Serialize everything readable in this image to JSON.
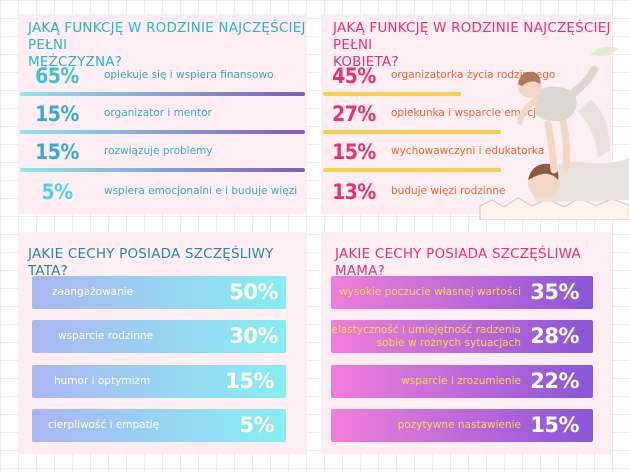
{
  "panel_men": {
    "title_line1": "JAKĄ FUNKCJĘ W RODZINIE NAJCZĘŚCIEJ PEŁNI",
    "title_line2": "MĘŻCZYZNA?",
    "rows": [
      {
        "pct": "65%",
        "label": "opiekuje się i wspiera finansowo",
        "share": 0.65
      },
      {
        "pct": "15%",
        "label": "organizator i mentor",
        "share": 0.15
      },
      {
        "pct": "15%",
        "label": "rozwiązuje problemy",
        "share": 0.15
      },
      {
        "pct": "5%",
        "label": "wspiera emocjonalni e i buduje więzi",
        "share": 0.05
      }
    ]
  },
  "panel_women": {
    "title_line1": "JAKĄ FUNKCJĘ W RODZINIE NAJCZĘŚCIEJ PEŁNI",
    "title_line2": "KOBIETA?",
    "rows": [
      {
        "pct": "45%",
        "label": "organizatorka życia rodzinnego",
        "share": 0.45
      },
      {
        "pct": "27%",
        "label": "opiekunka i wsparcie emocjonalne",
        "share": 0.27
      },
      {
        "pct": "15%",
        "label": "wychowawczyni i edukatorka",
        "share": 0.15
      },
      {
        "pct": "13%",
        "label": "buduje więzi rodzinne",
        "share": 0.13
      }
    ]
  },
  "panel_dad": {
    "title": "JAKIE CECHY POSIADA SZCZĘŚLIWY TATA?",
    "bars": [
      {
        "label": "zaangażowanie",
        "pct": "50%"
      },
      {
        "label": "wsparcie rodzinne",
        "pct": "30%"
      },
      {
        "label": "humor i optymizm",
        "pct": "15%"
      },
      {
        "label": "cierpliwość i empatię",
        "pct": "5%"
      }
    ]
  },
  "panel_mom": {
    "title": "JAKIE CECHY POSIADA SZCZĘŚLIWA MAMA?",
    "bars": [
      {
        "label": "wysokie poczucie własnej wartości",
        "pct": "35%"
      },
      {
        "label_line1": "elastyczność i umiejętność radzenia",
        "label_line2": "sobie w rożnych sytuacjach",
        "pct": "28%"
      },
      {
        "label": "wsparcie i zrozumienie",
        "pct": "22%"
      },
      {
        "label": "pozytywne nastawienie",
        "pct": "15%"
      }
    ]
  },
  "colors": {
    "panel_bg": "#fdeef3",
    "men_accent": "#2bb3ce",
    "men_line_start": "#7fdff0",
    "men_line_end": "#7d5bb8",
    "women_accent": "#e6336f",
    "women_line": "#f7d04d",
    "dad_bar_start": "#aebcf2",
    "dad_bar_end": "#7ff0f2",
    "mom_bar_start": "#f07cd6",
    "mom_bar_end": "#8552d6"
  },
  "illustration": "father-lifting-child-icon"
}
